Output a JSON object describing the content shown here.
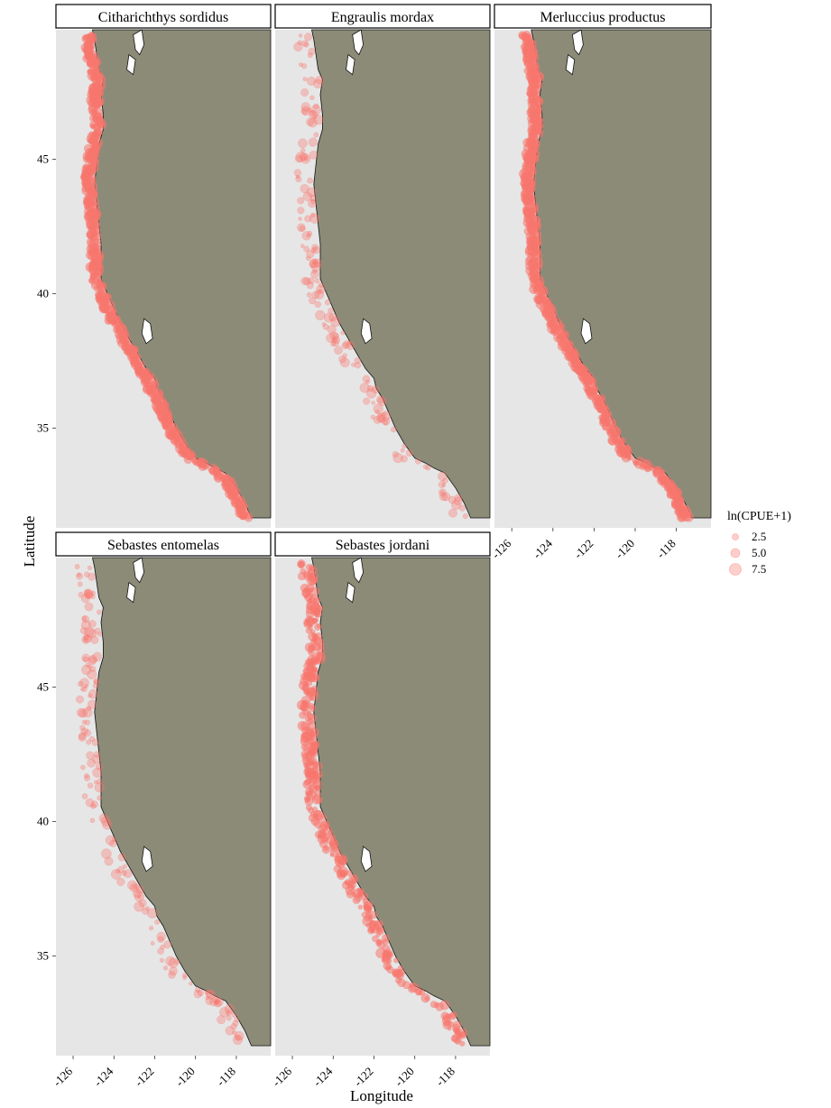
{
  "figure": {
    "xlabel": "Longitude",
    "ylabel": "Latitude",
    "x_ticks": [
      "-126",
      "-124",
      "-122",
      "-120",
      "-118"
    ],
    "y_ticks": [
      "45",
      "40",
      "35"
    ],
    "colors": {
      "panel_bg": "#e6e6e6",
      "land": "#8b8b78",
      "points": "#f8766d",
      "strip_bg": "#ffffff",
      "strip_border": "#000000"
    }
  },
  "legend": {
    "title": "ln(CPUE+1)",
    "items": [
      {
        "label": "2.5",
        "value": 2.5
      },
      {
        "label": "5.0",
        "value": 5.0
      },
      {
        "label": "7.5",
        "value": 7.5
      }
    ]
  },
  "chart_data": {
    "type": "scatter",
    "map_type": "faceted point map",
    "x_range": [
      -127,
      -117
    ],
    "y_range": [
      32,
      48.5
    ],
    "series": [
      {
        "name": "Citharichthys sordidus",
        "density": "high"
      },
      {
        "name": "Engraulis mordax",
        "density": "low"
      },
      {
        "name": "Merluccius productus",
        "density": "high"
      },
      {
        "name": "Sebastes entomelas",
        "density": "low"
      },
      {
        "name": "Sebastes jordani",
        "density": "medium"
      }
    ]
  }
}
